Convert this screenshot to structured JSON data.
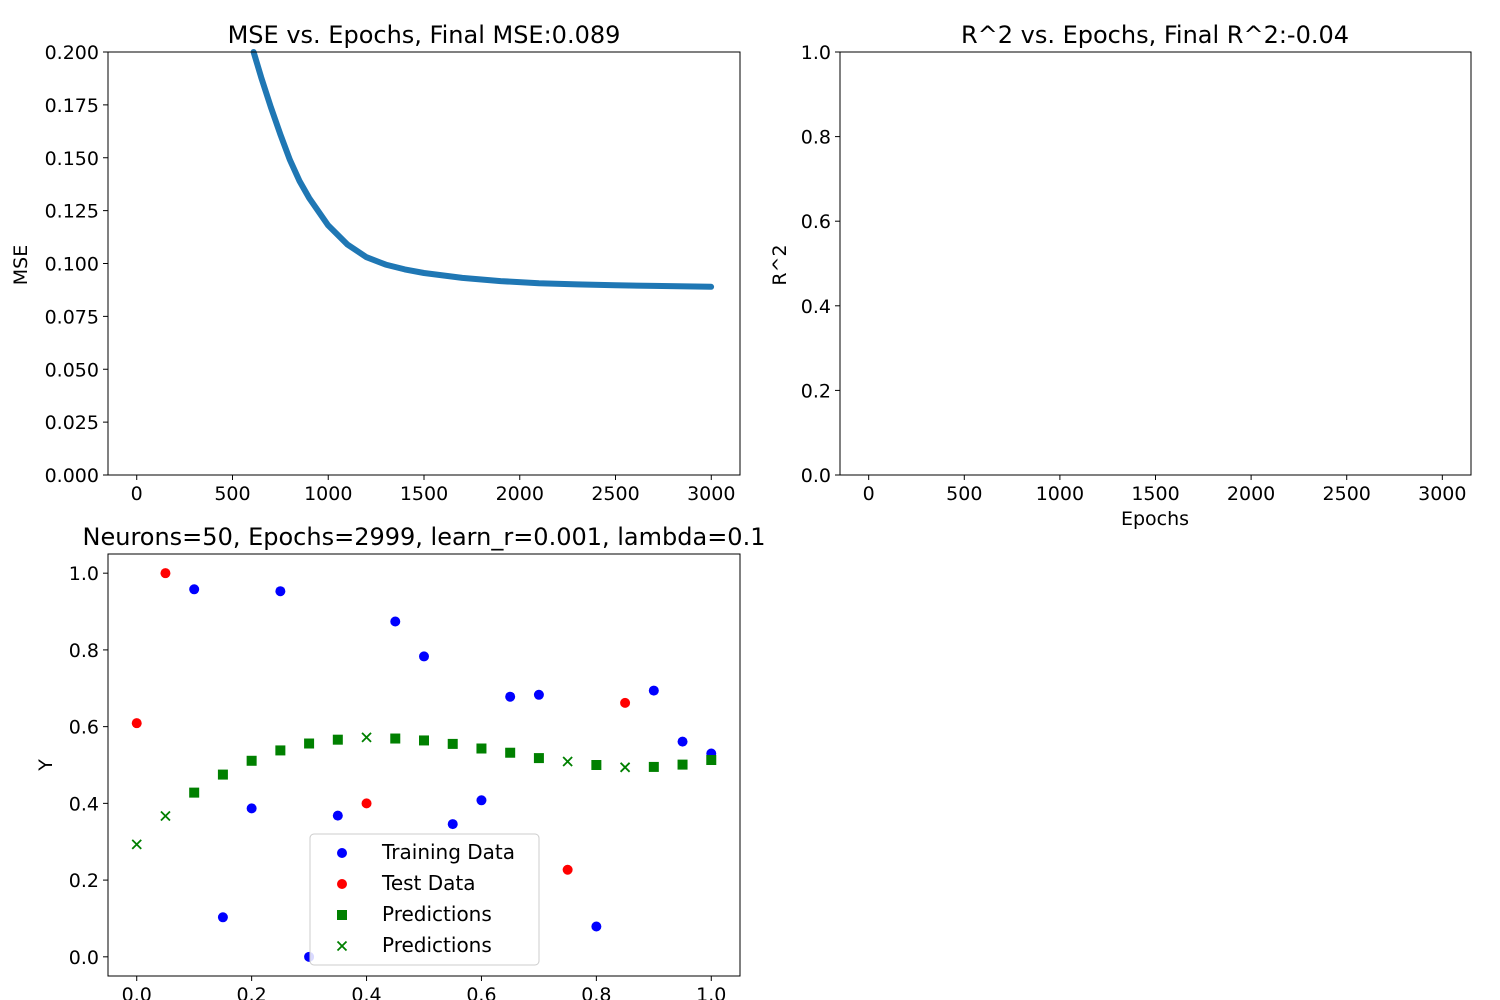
{
  "chart_data": [
    {
      "type": "line",
      "title": "MSE vs. Epochs, Final MSE:0.089",
      "xlabel": "",
      "ylabel": "MSE",
      "xlim": [
        -150,
        3150
      ],
      "ylim": [
        0,
        0.2
      ],
      "xticks": [
        "0",
        "500",
        "1000",
        "1500",
        "2000",
        "2500",
        "3000"
      ],
      "xtick_values": [
        0,
        500,
        1000,
        1500,
        2000,
        2500,
        3000
      ],
      "yticks": [
        "0.000",
        "0.025",
        "0.050",
        "0.075",
        "0.100",
        "0.125",
        "0.150",
        "0.175",
        "0.200"
      ],
      "ytick_values": [
        0,
        0.025,
        0.05,
        0.075,
        0.1,
        0.125,
        0.15,
        0.175,
        0.2
      ],
      "color": "#1f77b4",
      "series": [
        {
          "x": [
            610,
            650,
            700,
            750,
            800,
            850,
            900,
            1000,
            1100,
            1200,
            1300,
            1400,
            1500,
            1700,
            1900,
            2100,
            2300,
            2500,
            2700,
            2999
          ],
          "y": [
            0.2,
            0.188,
            0.174,
            0.161,
            0.149,
            0.139,
            0.131,
            0.118,
            0.109,
            0.103,
            0.0995,
            0.0972,
            0.0955,
            0.0932,
            0.0917,
            0.0907,
            0.0901,
            0.0897,
            0.0894,
            0.089
          ]
        }
      ]
    },
    {
      "type": "line",
      "title": "R^2 vs. Epochs, Final R^2:-0.04",
      "xlabel": "Epochs",
      "ylabel": "R^2",
      "xlim": [
        -150,
        3150
      ],
      "ylim": [
        0,
        1
      ],
      "xticks": [
        "0",
        "500",
        "1000",
        "1500",
        "2000",
        "2500",
        "3000"
      ],
      "xtick_values": [
        0,
        500,
        1000,
        1500,
        2000,
        2500,
        3000
      ],
      "yticks": [
        "0.0",
        "0.2",
        "0.4",
        "0.6",
        "0.8",
        "1.0"
      ],
      "ytick_values": [
        0,
        0.2,
        0.4,
        0.6,
        0.8,
        1.0
      ],
      "series": []
    },
    {
      "type": "scatter",
      "title": "Neurons=50, Epochs=2999, learn_r=0.001, lambda=0.1",
      "xlabel": "",
      "ylabel": "Y",
      "xlim": [
        -0.05,
        1.05
      ],
      "ylim": [
        -0.05,
        1.05
      ],
      "xticks": [
        "0.0",
        "0.2",
        "0.4",
        "0.6",
        "0.8",
        "1.0"
      ],
      "xtick_values": [
        0,
        0.2,
        0.4,
        0.6,
        0.8,
        1.0
      ],
      "yticks": [
        "0.0",
        "0.2",
        "0.4",
        "0.6",
        "0.8",
        "1.0"
      ],
      "ytick_values": [
        0,
        0.2,
        0.4,
        0.6,
        0.8,
        1.0
      ],
      "legend_position": "lower-center",
      "series": [
        {
          "name": "Training Data",
          "marker": "circle",
          "color": "#0000ff",
          "x": [
            0.1,
            0.15,
            0.2,
            0.25,
            0.3,
            0.35,
            0.45,
            0.5,
            0.55,
            0.6,
            0.65,
            0.7,
            0.8,
            0.9,
            0.95,
            1.0
          ],
          "y": [
            0.958,
            0.103,
            0.387,
            0.953,
            0.0,
            0.368,
            0.874,
            0.783,
            0.346,
            0.408,
            0.678,
            0.683,
            0.079,
            0.694,
            0.561,
            0.53
          ]
        },
        {
          "name": "Test Data",
          "marker": "circle",
          "color": "#ff0000",
          "x": [
            0.0,
            0.05,
            0.4,
            0.75,
            0.85
          ],
          "y": [
            0.609,
            1.0,
            0.4,
            0.227,
            0.662
          ]
        },
        {
          "name": "Predictions",
          "marker": "square",
          "color": "#008000",
          "x": [
            0.1,
            0.15,
            0.2,
            0.25,
            0.3,
            0.35,
            0.45,
            0.5,
            0.55,
            0.6,
            0.65,
            0.7,
            0.8,
            0.9,
            0.95,
            1.0
          ],
          "y": [
            0.428,
            0.475,
            0.511,
            0.538,
            0.556,
            0.566,
            0.569,
            0.564,
            0.555,
            0.543,
            0.532,
            0.518,
            0.5,
            0.495,
            0.501,
            0.513
          ]
        },
        {
          "name": "Predictions",
          "marker": "x",
          "color": "#008000",
          "x": [
            0.0,
            0.05,
            0.4,
            0.75,
            0.85
          ],
          "y": [
            0.293,
            0.367,
            0.572,
            0.509,
            0.494
          ]
        }
      ]
    }
  ]
}
